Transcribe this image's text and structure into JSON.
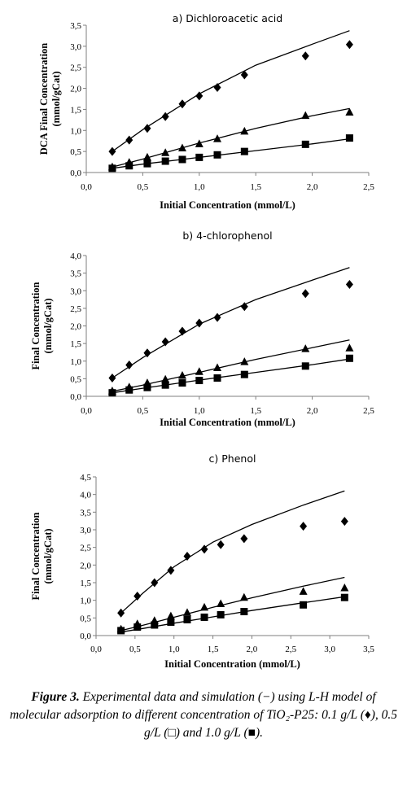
{
  "chart_data": [
    {
      "type": "scatter",
      "title": "a) Dichloroacetic acid",
      "xlabel": "Initial Concentration (mmol/L)",
      "ylabel_line1": "DCA Final Concentration",
      "ylabel_line2": "(mmol/gCat)",
      "xlim": [
        0,
        2.5
      ],
      "ylim": [
        0,
        3.5
      ],
      "xticks": [
        "0,0",
        "0,5",
        "1,0",
        "1,5",
        "2,0",
        "2,5"
      ],
      "yticks": [
        "0,0",
        "0,5",
        "1,0",
        "1,5",
        "2,0",
        "2,5",
        "3,0",
        "3,5"
      ],
      "series": [
        {
          "marker": "diamond",
          "x": [
            0.23,
            0.38,
            0.54,
            0.7,
            0.85,
            1.0,
            1.16,
            1.4,
            1.94,
            2.33
          ],
          "y": [
            0.5,
            0.77,
            1.05,
            1.33,
            1.63,
            1.82,
            2.02,
            2.32,
            2.77,
            3.04
          ]
        },
        {
          "marker": "triangle",
          "x": [
            0.23,
            0.38,
            0.54,
            0.7,
            0.85,
            1.0,
            1.16,
            1.4,
            1.94,
            2.33
          ],
          "y": [
            0.13,
            0.24,
            0.36,
            0.47,
            0.58,
            0.68,
            0.8,
            0.98,
            1.35,
            1.43
          ]
        },
        {
          "marker": "square",
          "x": [
            0.23,
            0.38,
            0.54,
            0.7,
            0.85,
            1.0,
            1.16,
            1.4,
            1.94,
            2.33
          ],
          "y": [
            0.1,
            0.16,
            0.21,
            0.27,
            0.31,
            0.36,
            0.42,
            0.5,
            0.67,
            0.82
          ]
        }
      ],
      "model": [
        {
          "x": [
            0.23,
            0.5,
            1.0,
            1.5,
            2.0,
            2.33
          ],
          "y": [
            0.5,
            1.02,
            1.87,
            2.55,
            3.05,
            3.37
          ]
        },
        {
          "x": [
            0.23,
            0.5,
            1.0,
            1.5,
            2.0,
            2.33
          ],
          "y": [
            0.13,
            0.32,
            0.7,
            1.05,
            1.35,
            1.52
          ]
        },
        {
          "x": [
            0.23,
            0.5,
            1.0,
            1.5,
            2.0,
            2.33
          ],
          "y": [
            0.1,
            0.2,
            0.36,
            0.52,
            0.68,
            0.8
          ]
        }
      ]
    },
    {
      "type": "scatter",
      "title": "b) 4-chlorophenol",
      "xlabel": "Initial Concentration (mmol/L)",
      "ylabel_line1": "Final Concentration",
      "ylabel_line2": "(mmol/gCat)",
      "xlim": [
        0,
        2.5
      ],
      "ylim": [
        0,
        4.0
      ],
      "xticks": [
        "0,0",
        "0,5",
        "1,0",
        "1,5",
        "2,0",
        "2,5"
      ],
      "yticks": [
        "0,0",
        "0,5",
        "1,0",
        "1,5",
        "2,0",
        "2,5",
        "3,0",
        "3,5",
        "4,0"
      ],
      "series": [
        {
          "marker": "diamond",
          "x": [
            0.23,
            0.38,
            0.54,
            0.7,
            0.85,
            1.0,
            1.16,
            1.4,
            1.94,
            2.33
          ],
          "y": [
            0.52,
            0.89,
            1.23,
            1.55,
            1.85,
            2.08,
            2.24,
            2.55,
            2.92,
            3.18
          ]
        },
        {
          "marker": "triangle",
          "x": [
            0.23,
            0.38,
            0.54,
            0.7,
            0.85,
            1.0,
            1.16,
            1.4,
            1.94,
            2.33
          ],
          "y": [
            0.15,
            0.26,
            0.38,
            0.48,
            0.59,
            0.7,
            0.81,
            0.98,
            1.35,
            1.37
          ]
        },
        {
          "marker": "square",
          "x": [
            0.23,
            0.38,
            0.54,
            0.7,
            0.85,
            1.0,
            1.16,
            1.4,
            1.94,
            2.33
          ],
          "y": [
            0.1,
            0.18,
            0.25,
            0.32,
            0.38,
            0.45,
            0.52,
            0.62,
            0.86,
            1.08
          ]
        }
      ],
      "model": [
        {
          "x": [
            0.23,
            0.5,
            1.0,
            1.5,
            2.0,
            2.33
          ],
          "y": [
            0.52,
            1.1,
            2.05,
            2.75,
            3.3,
            3.66
          ]
        },
        {
          "x": [
            0.23,
            0.5,
            1.0,
            1.5,
            2.0,
            2.33
          ],
          "y": [
            0.14,
            0.32,
            0.68,
            1.05,
            1.38,
            1.6
          ]
        },
        {
          "x": [
            0.23,
            0.5,
            1.0,
            1.5,
            2.0,
            2.33
          ],
          "y": [
            0.1,
            0.23,
            0.46,
            0.68,
            0.9,
            1.06
          ]
        }
      ]
    },
    {
      "type": "scatter",
      "title": "c) Phenol",
      "xlabel": "Initial Concentration (mmol/L)",
      "ylabel_line1": "Final Concentration",
      "ylabel_line2": "(mmol/gCat)",
      "xlim": [
        0,
        3.5
      ],
      "ylim": [
        0,
        4.5
      ],
      "xticks": [
        "0,0",
        "0,5",
        "1,0",
        "1,5",
        "2,0",
        "2,5",
        "3,0",
        "3,5"
      ],
      "yticks": [
        "0,0",
        "0,5",
        "1,0",
        "1,5",
        "2,0",
        "2,5",
        "3,0",
        "3,5",
        "4,0",
        "4,5"
      ],
      "series": [
        {
          "marker": "diamond",
          "x": [
            0.32,
            0.53,
            0.75,
            0.96,
            1.17,
            1.39,
            1.6,
            1.9,
            2.66,
            3.19
          ],
          "y": [
            0.64,
            1.12,
            1.5,
            1.85,
            2.25,
            2.45,
            2.58,
            2.75,
            3.1,
            3.24
          ]
        },
        {
          "marker": "triangle",
          "x": [
            0.32,
            0.53,
            0.75,
            0.96,
            1.17,
            1.39,
            1.6,
            1.9,
            2.66,
            3.19
          ],
          "y": [
            0.18,
            0.33,
            0.42,
            0.55,
            0.65,
            0.8,
            0.9,
            1.08,
            1.25,
            1.35
          ]
        },
        {
          "marker": "square",
          "x": [
            0.32,
            0.53,
            0.75,
            0.96,
            1.17,
            1.39,
            1.6,
            1.9,
            2.66,
            3.19
          ],
          "y": [
            0.14,
            0.24,
            0.3,
            0.38,
            0.45,
            0.52,
            0.59,
            0.68,
            0.87,
            1.08
          ]
        }
      ],
      "model": [
        {
          "x": [
            0.32,
            0.6,
            1.0,
            1.5,
            2.0,
            2.66,
            3.19
          ],
          "y": [
            0.64,
            1.2,
            1.95,
            2.65,
            3.15,
            3.7,
            4.1
          ]
        },
        {
          "x": [
            0.32,
            0.6,
            1.0,
            1.5,
            2.0,
            2.66,
            3.19
          ],
          "y": [
            0.14,
            0.29,
            0.52,
            0.8,
            1.07,
            1.4,
            1.65
          ]
        },
        {
          "x": [
            0.32,
            0.6,
            1.0,
            1.5,
            2.0,
            2.66,
            3.19
          ],
          "y": [
            0.1,
            0.2,
            0.35,
            0.53,
            0.71,
            0.93,
            1.1
          ]
        }
      ]
    }
  ],
  "caption": {
    "label": "Figure 3.",
    "text": " Experimental data and simulation (−) using L-H model of molecular adsorption to different concentration of TiO₂-P25: 0.1 g/L (♦), 0.5 g/L (□) and 1.0 g/L (■)."
  },
  "colors": {
    "ink": "#000000",
    "axis": "#7f7f7f"
  }
}
